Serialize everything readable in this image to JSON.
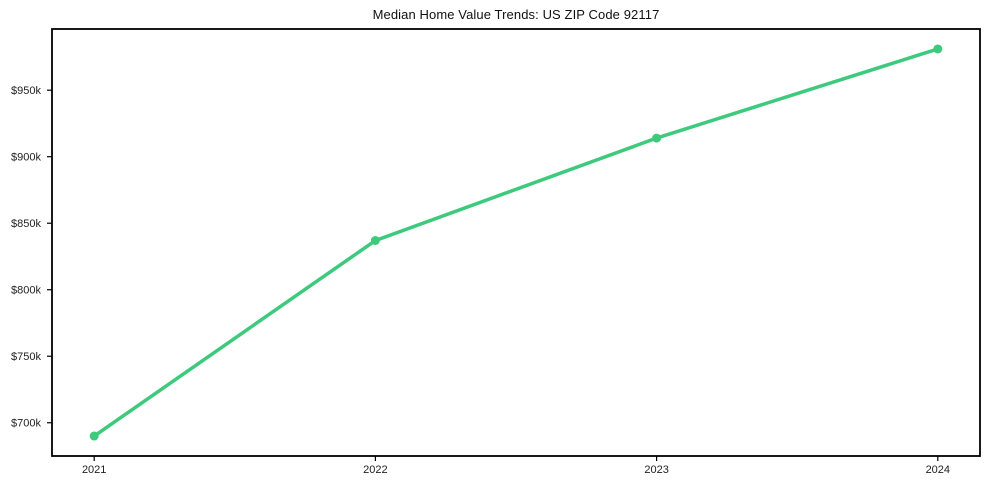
{
  "chart_data": {
    "type": "line",
    "title": "Median Home Value Trends: US ZIP Code 92117",
    "categories": [
      "2021",
      "2022",
      "2023",
      "2024"
    ],
    "x": [
      2021,
      2022,
      2023,
      2024
    ],
    "values_thousands_usd": [
      690,
      837,
      914,
      981
    ],
    "y_ticks": [
      {
        "value": 700,
        "label": "$700k"
      },
      {
        "value": 750,
        "label": "$750k"
      },
      {
        "value": 800,
        "label": "$800k"
      },
      {
        "value": 850,
        "label": "$850k"
      },
      {
        "value": 900,
        "label": "$900k"
      },
      {
        "value": 950,
        "label": "$950k"
      }
    ],
    "xlim": [
      2020.85,
      2024.15
    ],
    "ylim": [
      675,
      996
    ],
    "line_color": "#3dca7d",
    "spine_color": "#000000",
    "grid": false,
    "legend": "none",
    "xlabel": "",
    "ylabel": ""
  }
}
